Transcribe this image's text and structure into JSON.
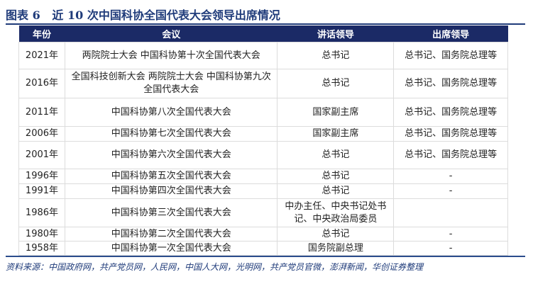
{
  "title": "图表 6   近 10 次中国科协全国代表大会领导出席情况",
  "columns": [
    "年份",
    "会议",
    "讲话领导",
    "出席领导"
  ],
  "rows": [
    {
      "year": "2021年",
      "meeting": "两院院士大会 中国科协第十次全国代表大会",
      "speaker": "总书记",
      "attendees": "总书记、国务院总理等",
      "h": 38
    },
    {
      "year": "2016年",
      "meeting": "全国科技创新大会 两院院士大会 中国科协第九次全国代表大会",
      "speaker": "总书记",
      "attendees": "总书记、国务院总理等",
      "h": 41
    },
    {
      "year": "2011年",
      "meeting": "中国科协第八次全国代表大会",
      "speaker": "国家副主席",
      "attendees": "总书记、国务院总理等",
      "h": 40
    },
    {
      "year": "2006年",
      "meeting": "中国科协第七次全国代表大会",
      "speaker": "国家副主席",
      "attendees": "总书记、国务院总理等",
      "h": 21
    },
    {
      "year": "2001年",
      "meeting": "中国科协第六次全国代表大会",
      "speaker": "总书记",
      "attendees": "总书记、国务院总理等",
      "h": 39
    },
    {
      "year": "1996年",
      "meeting": "中国科协第五次全国代表大会",
      "speaker": "总书记",
      "attendees": "-",
      "h": 21
    },
    {
      "year": "1991年",
      "meeting": "中国科协第四次全国代表大会",
      "speaker": "总书记",
      "attendees": "-",
      "h": 21
    },
    {
      "year": "1986年",
      "meeting": "中国科协第三次全国代表大会",
      "speaker": "中办主任、中央书记处书记、中央政治局委员",
      "attendees": "",
      "h": 40
    },
    {
      "year": "1980年",
      "meeting": "中国科协第二次全国代表大会",
      "speaker": "总书记",
      "attendees": "-",
      "h": 20
    },
    {
      "year": "1958年",
      "meeting": "中国科协第一次全国代表大会",
      "speaker": "国务院副总理",
      "attendees": "-",
      "h": 20
    }
  ],
  "source": "资料来源：中国政府网，共产党员网，人民网，中国人大网，光明网，共产党员官微，澎湃新闻，华创证券整理"
}
